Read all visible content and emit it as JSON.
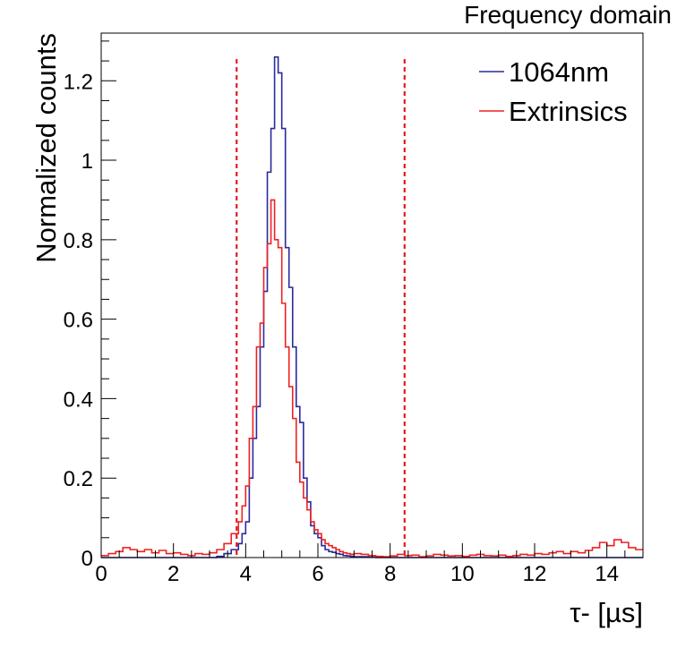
{
  "chart_data": {
    "type": "histogram",
    "title": "Frequency domain",
    "xlabel": "τ- [µs]",
    "ylabel": "Normalized counts",
    "xlim": [
      0,
      15
    ],
    "ylim": [
      0,
      1.32
    ],
    "bin_width": 0.2,
    "x_ticks": [
      0,
      2,
      4,
      6,
      8,
      10,
      12,
      14
    ],
    "x_tick_labels": [
      "0",
      "2",
      "4",
      "6",
      "8",
      "10",
      "12",
      "14"
    ],
    "y_ticks": [
      0,
      0.2,
      0.4,
      0.6,
      0.8,
      1.0,
      1.2
    ],
    "y_tick_labels": [
      "0",
      "0.2",
      "0.4",
      "0.6",
      "0.8",
      "1",
      "1.2"
    ],
    "legend_position": "top-right",
    "cut_lines": [
      3.75,
      8.4
    ],
    "series": [
      {
        "name": "1064nm",
        "color": "#2a2a9e",
        "bin_starts": [
          0,
          0.2,
          0.4,
          0.6,
          0.8,
          1.0,
          1.2,
          1.4,
          1.6,
          1.8,
          2.0,
          2.2,
          2.4,
          2.6,
          2.8,
          3.0,
          3.2,
          3.4,
          3.6,
          3.8,
          3.9,
          4.0,
          4.1,
          4.2,
          4.3,
          4.4,
          4.5,
          4.6,
          4.7,
          4.8,
          4.9,
          5.0,
          5.1,
          5.2,
          5.3,
          5.4,
          5.5,
          5.6,
          5.7,
          5.8,
          5.9,
          6.0,
          6.1,
          6.2,
          6.3,
          6.4,
          6.5,
          6.6,
          6.7,
          6.8,
          6.9,
          7.0,
          7.2,
          7.4,
          7.6,
          7.8,
          8.0,
          8.2,
          8.4,
          8.6,
          8.8,
          9.0,
          9.2,
          9.4,
          9.6,
          9.8,
          10.0,
          10.2,
          10.4,
          10.6,
          10.8,
          11.0,
          11.2,
          11.4,
          11.6,
          11.8,
          12.0,
          12.2,
          12.4,
          12.6,
          12.8,
          13.0,
          13.2,
          13.4,
          13.6,
          13.8,
          14.0,
          14.2,
          14.4,
          14.6,
          14.8
        ],
        "values": [
          0,
          0,
          0,
          0,
          0,
          0,
          0,
          0,
          0,
          0,
          0,
          0,
          0,
          0,
          0,
          0,
          0.003,
          0.01,
          0.02,
          0.035,
          0.06,
          0.09,
          0.2,
          0.3,
          0.38,
          0.53,
          0.67,
          0.97,
          1.08,
          1.26,
          1.22,
          1.08,
          0.78,
          0.68,
          0.53,
          0.38,
          0.34,
          0.2,
          0.14,
          0.08,
          0.06,
          0.05,
          0.03,
          0.02,
          0.015,
          0.013,
          0.01,
          0.008,
          0.005,
          0.004,
          0.003,
          0.002,
          0.002,
          0.001,
          0,
          0,
          0,
          0,
          0,
          0,
          0,
          0,
          0,
          0,
          0,
          0,
          0,
          0,
          0,
          0,
          0,
          0,
          0,
          0,
          0,
          0,
          0,
          0,
          0,
          0,
          0,
          0,
          0,
          0,
          0,
          0,
          0,
          0,
          0,
          0,
          0
        ]
      },
      {
        "name": "Extrinsics",
        "color": "#ee2222",
        "bin_starts": [
          0,
          0.2,
          0.4,
          0.6,
          0.8,
          1.0,
          1.2,
          1.4,
          1.6,
          1.8,
          2.0,
          2.2,
          2.4,
          2.6,
          2.8,
          3.0,
          3.2,
          3.4,
          3.6,
          3.8,
          3.9,
          4.0,
          4.1,
          4.2,
          4.3,
          4.4,
          4.5,
          4.6,
          4.7,
          4.8,
          4.9,
          5.0,
          5.1,
          5.2,
          5.3,
          5.4,
          5.5,
          5.6,
          5.7,
          5.8,
          5.9,
          6.0,
          6.1,
          6.2,
          6.3,
          6.4,
          6.5,
          6.6,
          6.7,
          6.8,
          6.9,
          7.0,
          7.2,
          7.4,
          7.6,
          7.8,
          8.0,
          8.2,
          8.4,
          8.6,
          8.8,
          9.0,
          9.2,
          9.4,
          9.6,
          9.8,
          10.0,
          10.2,
          10.4,
          10.6,
          10.8,
          11.0,
          11.2,
          11.4,
          11.6,
          11.8,
          12.0,
          12.2,
          12.4,
          12.6,
          12.8,
          13.0,
          13.2,
          13.4,
          13.6,
          13.8,
          14.0,
          14.2,
          14.4,
          14.6,
          14.8
        ],
        "values": [
          0.005,
          0.01,
          0.015,
          0.025,
          0.02,
          0.015,
          0.02,
          0.012,
          0.018,
          0.01,
          0.012,
          0.008,
          0.005,
          0.01,
          0.008,
          0.012,
          0.02,
          0.035,
          0.06,
          0.09,
          0.13,
          0.18,
          0.3,
          0.38,
          0.53,
          0.59,
          0.73,
          0.79,
          0.9,
          0.8,
          0.78,
          0.64,
          0.53,
          0.43,
          0.35,
          0.24,
          0.19,
          0.15,
          0.12,
          0.09,
          0.07,
          0.06,
          0.045,
          0.035,
          0.03,
          0.025,
          0.02,
          0.015,
          0.012,
          0.01,
          0.008,
          0.01,
          0.008,
          0.005,
          0.003,
          0.002,
          0.004,
          0.008,
          0.005,
          0.006,
          0.002,
          0.004,
          0.008,
          0.006,
          0.004,
          0.005,
          0.003,
          0.006,
          0.008,
          0.005,
          0.004,
          0.006,
          0.003,
          0.005,
          0.008,
          0.006,
          0.01,
          0.008,
          0.012,
          0.015,
          0.01,
          0.015,
          0.012,
          0.018,
          0.025,
          0.038,
          0.03,
          0.045,
          0.038,
          0.025,
          0.02
        ]
      }
    ]
  }
}
